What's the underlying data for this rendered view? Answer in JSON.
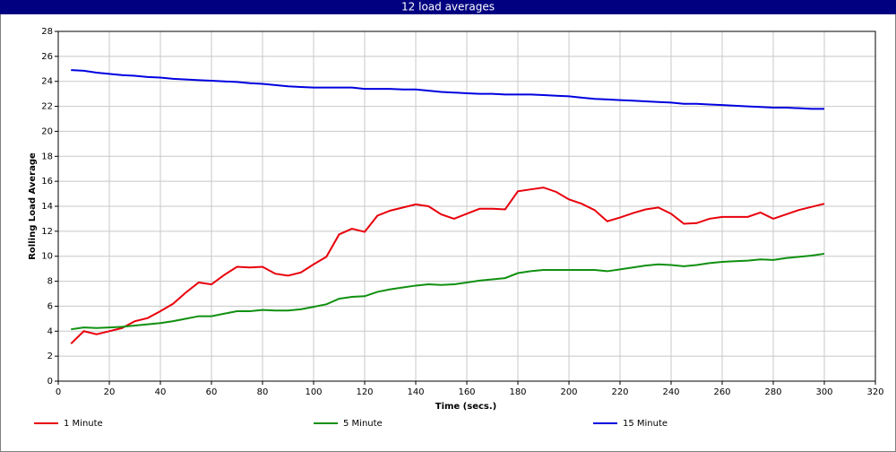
{
  "chart_data": {
    "type": "line",
    "title": "12 load averages",
    "x_label": "Time (secs.)",
    "y_label": "Rolling Load Average",
    "x": [
      5,
      10,
      15,
      20,
      25,
      30,
      35,
      40,
      45,
      50,
      55,
      60,
      65,
      70,
      75,
      80,
      85,
      90,
      95,
      100,
      105,
      110,
      115,
      120,
      125,
      130,
      135,
      140,
      145,
      150,
      155,
      160,
      165,
      170,
      175,
      180,
      185,
      190,
      195,
      200,
      205,
      210,
      215,
      220,
      225,
      230,
      235,
      240,
      245,
      250,
      255,
      260,
      265,
      270,
      275,
      280,
      285,
      290,
      295,
      300
    ],
    "series": [
      {
        "name": "1 Minute",
        "color": "#e8000b",
        "values": [
          3.0,
          4.0,
          3.75,
          4.0,
          4.25,
          4.8,
          5.05,
          5.6,
          6.2,
          7.1,
          7.9,
          7.75,
          8.5,
          9.15,
          9.1,
          9.15,
          8.6,
          8.45,
          8.7,
          9.35,
          9.95,
          11.75,
          12.2,
          11.95,
          13.25,
          13.65,
          13.9,
          14.15,
          14.0,
          13.35,
          13.0,
          13.4,
          13.8,
          13.8,
          13.75,
          15.2,
          15.35,
          15.5,
          15.15,
          14.55,
          14.2,
          13.7,
          12.8,
          13.1,
          13.45,
          13.75,
          13.9,
          13.4,
          12.6,
          12.65,
          13.0,
          13.15,
          13.15,
          13.15,
          13.5,
          13.0,
          13.35,
          13.7,
          13.95,
          14.2
        ]
      },
      {
        "name": "5 Minute",
        "color": "#109010",
        "values": [
          4.15,
          4.3,
          4.25,
          4.3,
          4.35,
          4.45,
          4.55,
          4.65,
          4.8,
          5.0,
          5.2,
          5.2,
          5.4,
          5.6,
          5.6,
          5.7,
          5.65,
          5.65,
          5.75,
          5.95,
          6.15,
          6.6,
          6.75,
          6.8,
          7.15,
          7.35,
          7.5,
          7.65,
          7.75,
          7.7,
          7.75,
          7.9,
          8.05,
          8.15,
          8.25,
          8.65,
          8.8,
          8.9,
          8.9,
          8.9,
          8.9,
          8.9,
          8.8,
          8.95,
          9.1,
          9.25,
          9.35,
          9.3,
          9.2,
          9.3,
          9.45,
          9.55,
          9.6,
          9.65,
          9.75,
          9.7,
          9.85,
          9.95,
          10.05,
          10.2
        ]
      },
      {
        "name": "15 Minute",
        "color": "#0000e0",
        "values": [
          24.9,
          24.85,
          24.7,
          24.6,
          24.5,
          24.45,
          24.35,
          24.3,
          24.2,
          24.15,
          24.1,
          24.05,
          24.0,
          23.95,
          23.85,
          23.8,
          23.7,
          23.6,
          23.55,
          23.5,
          23.5,
          23.5,
          23.5,
          23.4,
          23.4,
          23.4,
          23.35,
          23.35,
          23.25,
          23.15,
          23.1,
          23.05,
          23.0,
          23.0,
          22.95,
          22.95,
          22.95,
          22.9,
          22.85,
          22.8,
          22.7,
          22.6,
          22.55,
          22.5,
          22.45,
          22.4,
          22.35,
          22.3,
          22.2,
          22.2,
          22.15,
          22.1,
          22.05,
          22.0,
          21.95,
          21.9,
          21.9,
          21.85,
          21.8,
          21.8
        ]
      }
    ],
    "xlim": [
      0,
      320
    ],
    "xticks": [
      0,
      20,
      40,
      60,
      80,
      100,
      120,
      140,
      160,
      180,
      200,
      220,
      240,
      260,
      280,
      300,
      320
    ],
    "ylim": [
      0,
      28
    ],
    "yticks": [
      0,
      2,
      4,
      6,
      8,
      10,
      12,
      14,
      16,
      18,
      20,
      22,
      24,
      26,
      28
    ],
    "grid": true,
    "legend": "bottom"
  }
}
